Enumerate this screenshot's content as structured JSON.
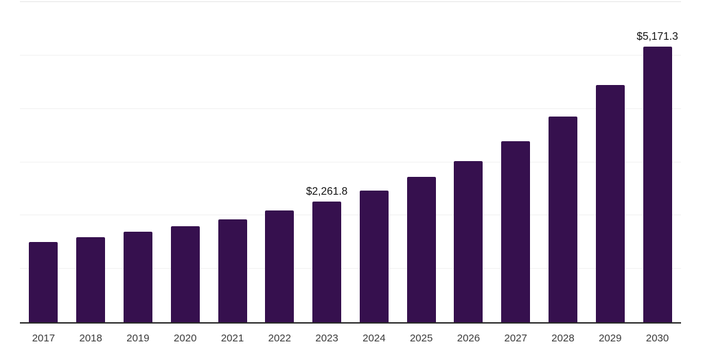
{
  "chart_data": {
    "type": "bar",
    "title": "",
    "xlabel": "",
    "ylabel": "",
    "categories": [
      "2017",
      "2018",
      "2019",
      "2020",
      "2021",
      "2022",
      "2023",
      "2024",
      "2025",
      "2026",
      "2027",
      "2028",
      "2029",
      "2030"
    ],
    "values": [
      1500,
      1590,
      1695,
      1800,
      1925,
      2095,
      2261.8,
      2465,
      2720,
      3015,
      3390,
      3860,
      4440,
      5171.3
    ],
    "value_labels": {
      "2023": "$2,261.8",
      "2030": "$5,171.3"
    },
    "ylim": [
      0,
      6000
    ],
    "gridline_step": 1000,
    "grid": true,
    "legend_position": "none"
  },
  "colors": {
    "bar": "#36104E",
    "axis_line": "#2b2b2b",
    "gridline": "#f1f1f1",
    "top_border": "#e5e5e5",
    "label_text": "#111111",
    "tick_text": "#3a3a3a",
    "background": "#ffffff"
  }
}
